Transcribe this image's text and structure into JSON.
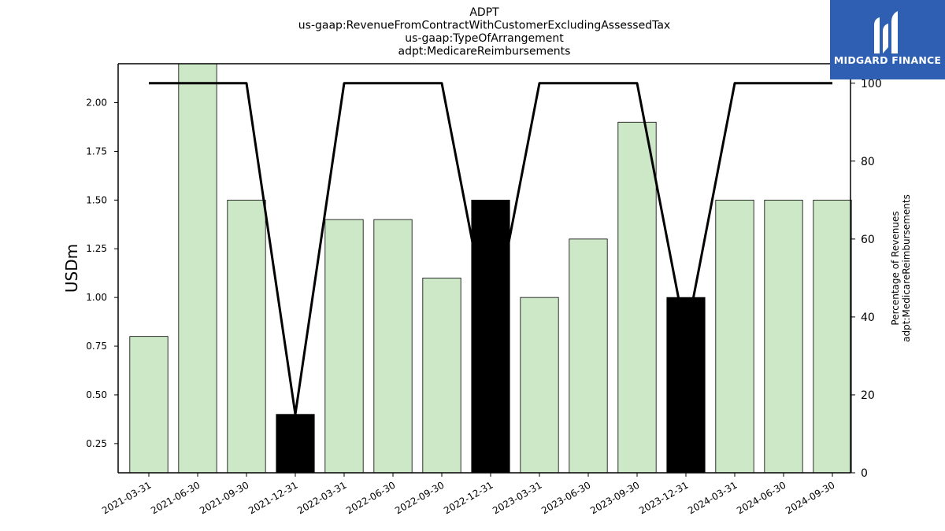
{
  "chart_data": {
    "type": "bar",
    "title_lines": [
      "ADPT",
      "us-gaap:RevenueFromContractWithCustomerExcludingAssessedTax",
      "us-gaap:TypeOfArrangement",
      "adpt:MedicareReimbursements"
    ],
    "ylabel": "USDm",
    "y2label_lines": [
      "Percentage of Revenues",
      "adpt:MedicareReimbursements"
    ],
    "categories": [
      "2021-03-31",
      "2021-06-30",
      "2021-09-30",
      "2021-12-31",
      "2022-03-31",
      "2022-06-30",
      "2022-09-30",
      "2022-12-31",
      "2023-03-31",
      "2023-06-30",
      "2023-09-30",
      "2023-12-31",
      "2024-03-31",
      "2024-06-30",
      "2024-09-30"
    ],
    "series": [
      {
        "type": "bar",
        "values": [
          0.8,
          2.2,
          1.5,
          0.4,
          1.4,
          1.4,
          1.1,
          1.5,
          1.0,
          1.3,
          1.9,
          1.0,
          1.5,
          1.5,
          1.5
        ],
        "highlighted": [
          false,
          false,
          false,
          true,
          false,
          false,
          false,
          true,
          false,
          false,
          false,
          true,
          false,
          false,
          false
        ]
      },
      {
        "type": "line",
        "axis": "right",
        "values": [
          100,
          100,
          100,
          15,
          100,
          100,
          100,
          35,
          100,
          100,
          100,
          35,
          100,
          100,
          100
        ]
      }
    ],
    "ylim": [
      0.1,
      2.2
    ],
    "yticks": [
      0.25,
      0.5,
      0.75,
      1.0,
      1.25,
      1.5,
      1.75,
      2.0
    ],
    "y2lim": [
      0,
      105
    ],
    "y2ticks": [
      0,
      20,
      40,
      60,
      80,
      100
    ],
    "grid": false,
    "colors": {
      "bar": "#cce8c6",
      "bar_highlight": "#000000",
      "line": "#000000"
    }
  },
  "logo": {
    "text": "MIDGARD FINANCE",
    "background": "#2f5fb3"
  }
}
